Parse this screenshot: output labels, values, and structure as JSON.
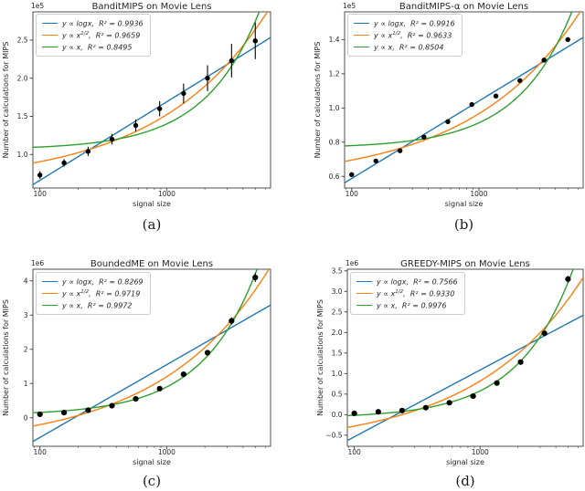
{
  "figure": {
    "kind": "matplotlib 2x2 panel figure",
    "background": "#ffffff",
    "marker_color": "#000000"
  },
  "chart_data": [
    {
      "type": "scatter",
      "panel": "a",
      "caption": "(a)",
      "title": "BanditMIPS on Movie Lens",
      "xlabel": "signal size",
      "ylabel": "Number of calculations for MIPS",
      "y_offset_label": "1e5",
      "x_scale": "log",
      "grid": false,
      "legend_position": "upper left",
      "xlim": [
        88,
        6600
      ],
      "ylim": [
        0.56,
        2.87
      ],
      "xtick_values": [
        100,
        1000
      ],
      "xtick_labels": [
        "100",
        "1000"
      ],
      "ytick_values": [
        1.0,
        1.5,
        2.0,
        2.5
      ],
      "ytick_labels": [
        "1.0",
        "1.5",
        "2.0",
        "2.5"
      ],
      "x": [
        100,
        155,
        240,
        370,
        570,
        880,
        1360,
        2100,
        3250,
        5000
      ],
      "y": [
        0.73,
        0.89,
        1.04,
        1.2,
        1.38,
        1.6,
        1.8,
        2.0,
        2.23,
        2.49
      ],
      "yerr": [
        0.05,
        0.05,
        0.06,
        0.07,
        0.08,
        0.1,
        0.13,
        0.17,
        0.22,
        0.24
      ],
      "series": [
        {
          "name": "log fit",
          "fit": "log",
          "color": "#1f77b4",
          "r2": 0.9936,
          "legend": {
            "pre": "y ∝ logx",
            "sup": "",
            "post": ",  R² = 0.9936"
          }
        },
        {
          "name": "sqrt fit",
          "fit": "sqrt",
          "color": "#ff7f0e",
          "r2": 0.9659,
          "legend": {
            "pre": "y ∝ x",
            "sup": "1/2",
            "post": ",  R² = 0.9659"
          }
        },
        {
          "name": "linear fit",
          "fit": "linear",
          "color": "#2ca02c",
          "r2": 0.8495,
          "legend": {
            "pre": "y ∝ x",
            "sup": "",
            "post": ",  R² = 0.8495"
          }
        }
      ]
    },
    {
      "type": "scatter",
      "panel": "b",
      "caption": "(b)",
      "title": "BanditMIPS-α on Movie Lens",
      "xlabel": "signal size",
      "ylabel": "Number of calculations for MIPS",
      "y_offset_label": "1e5",
      "x_scale": "log",
      "grid": false,
      "legend_position": "upper left",
      "xlim": [
        88,
        6600
      ],
      "ylim": [
        0.532,
        1.562
      ],
      "xtick_values": [
        100,
        1000
      ],
      "xtick_labels": [
        "100",
        "1000"
      ],
      "ytick_values": [
        0.6,
        0.8,
        1.0,
        1.2,
        1.4
      ],
      "ytick_labels": [
        "0.6",
        "0.8",
        "1.0",
        "1.2",
        "1.4"
      ],
      "x": [
        100,
        155,
        240,
        370,
        570,
        880,
        1360,
        2100,
        3250,
        5000
      ],
      "y": [
        0.61,
        0.69,
        0.75,
        0.83,
        0.92,
        1.02,
        1.07,
        1.16,
        1.28,
        1.4
      ],
      "yerr": [
        0.008,
        0.008,
        0.008,
        0.008,
        0.008,
        0.008,
        0.008,
        0.008,
        0.008,
        0.008
      ],
      "series": [
        {
          "name": "log fit",
          "fit": "log",
          "color": "#1f77b4",
          "r2": 0.9916,
          "legend": {
            "pre": "y ∝ logx",
            "sup": "",
            "post": ",  R² = 0.9916"
          }
        },
        {
          "name": "sqrt fit",
          "fit": "sqrt",
          "color": "#ff7f0e",
          "r2": 0.9633,
          "legend": {
            "pre": "y ∝ x",
            "sup": "1/2",
            "post": ",  R² = 0.9633"
          }
        },
        {
          "name": "linear fit",
          "fit": "linear",
          "color": "#2ca02c",
          "r2": 0.8504,
          "legend": {
            "pre": "y ∝ x",
            "sup": "",
            "post": ",  R² = 0.8504"
          }
        }
      ]
    },
    {
      "type": "scatter",
      "panel": "c",
      "caption": "(c)",
      "title": "BoundedME on Movie Lens",
      "xlabel": "signal size",
      "ylabel": "Number of calculations for MIPS",
      "y_offset_label": "1e6",
      "x_scale": "log",
      "grid": false,
      "legend_position": "upper left",
      "xlim": [
        88,
        6600
      ],
      "ylim": [
        -0.835,
        4.34
      ],
      "xtick_values": [
        100,
        1000
      ],
      "xtick_labels": [
        "100",
        "1000"
      ],
      "ytick_values": [
        0,
        1,
        2,
        3,
        4
      ],
      "ytick_labels": [
        "0",
        "1",
        "2",
        "3",
        "4"
      ],
      "x": [
        100,
        155,
        240,
        370,
        570,
        880,
        1360,
        2100,
        3250,
        5000
      ],
      "y": [
        0.1,
        0.15,
        0.22,
        0.35,
        0.55,
        0.85,
        1.27,
        1.9,
        2.83,
        4.1
      ],
      "yerr": [
        0.02,
        0.02,
        0.03,
        0.03,
        0.04,
        0.05,
        0.06,
        0.08,
        0.1,
        0.13
      ],
      "series": [
        {
          "name": "log fit",
          "fit": "log",
          "color": "#1f77b4",
          "r2": 0.8269,
          "legend": {
            "pre": "y ∝ logx",
            "sup": "",
            "post": ",  R² = 0.8269"
          }
        },
        {
          "name": "sqrt fit",
          "fit": "sqrt",
          "color": "#ff7f0e",
          "r2": 0.9719,
          "legend": {
            "pre": "y ∝ x",
            "sup": "1/2",
            "post": ",  R² = 0.9719"
          }
        },
        {
          "name": "linear fit",
          "fit": "linear",
          "color": "#2ca02c",
          "r2": 0.9972,
          "legend": {
            "pre": "y ∝ x",
            "sup": "",
            "post": ",  R² = 0.9972"
          }
        }
      ]
    },
    {
      "type": "scatter",
      "panel": "d",
      "caption": "(d)",
      "title": "GREEDY-MIPS on Movie Lens",
      "xlabel": "signal size",
      "ylabel": "Number of calculations for MIPS",
      "y_offset_label": "1e6",
      "x_scale": "log",
      "grid": false,
      "legend_position": "upper left",
      "xlim": [
        88,
        6600
      ],
      "ylim": [
        -0.77,
        3.54
      ],
      "xtick_values": [
        100,
        1000
      ],
      "xtick_labels": [
        "100",
        "1000"
      ],
      "ytick_values": [
        -0.5,
        0.0,
        0.5,
        1.0,
        1.5,
        2.0,
        2.5,
        3.0,
        3.5
      ],
      "ytick_labels": [
        "−0.5",
        "0.0",
        "0.5",
        "1.0",
        "1.5",
        "2.0",
        "2.5",
        "3.0",
        "3.5"
      ],
      "x": [
        100,
        155,
        240,
        370,
        570,
        880,
        1360,
        2100,
        3250,
        5000
      ],
      "y": [
        0.03,
        0.07,
        0.1,
        0.17,
        0.29,
        0.45,
        0.77,
        1.28,
        1.98,
        3.3
      ],
      "yerr": [
        0.02,
        0.02,
        0.02,
        0.02,
        0.03,
        0.03,
        0.04,
        0.05,
        0.06,
        0.08
      ],
      "series": [
        {
          "name": "log fit",
          "fit": "log",
          "color": "#1f77b4",
          "r2": 0.7566,
          "legend": {
            "pre": "y ∝ logx",
            "sup": "",
            "post": ",  R² = 0.7566"
          }
        },
        {
          "name": "sqrt fit",
          "fit": "sqrt",
          "color": "#ff7f0e",
          "r2": 0.933,
          "legend": {
            "pre": "y ∝ x",
            "sup": "1/2",
            "post": ",  R² = 0.9330"
          }
        },
        {
          "name": "linear fit",
          "fit": "linear",
          "color": "#2ca02c",
          "r2": 0.9976,
          "legend": {
            "pre": "y ∝ x",
            "sup": "",
            "post": ",  R² = 0.9976"
          }
        }
      ]
    }
  ]
}
